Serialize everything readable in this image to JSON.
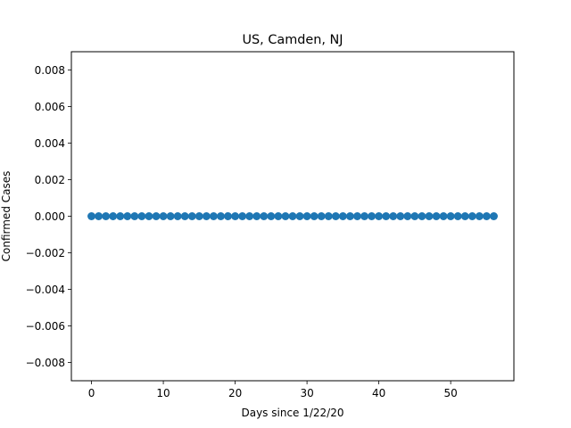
{
  "chart_data": {
    "type": "scatter",
    "title": "US, Camden, NJ",
    "xlabel": "Days since 1/22/20",
    "ylabel": "Confirmed Cases",
    "xlim": [
      -2.8,
      58.8
    ],
    "ylim": [
      -0.009,
      0.009
    ],
    "x_ticks": [
      0,
      10,
      20,
      30,
      40,
      50
    ],
    "x_tick_labels": [
      "0",
      "10",
      "20",
      "30",
      "40",
      "50"
    ],
    "y_ticks": [
      -0.008,
      -0.006,
      -0.004,
      -0.002,
      0.0,
      0.002,
      0.004,
      0.006,
      0.008
    ],
    "y_tick_labels": [
      "−0.008",
      "−0.006",
      "−0.004",
      "−0.002",
      "0.000",
      "0.002",
      "0.004",
      "0.006",
      "0.008"
    ],
    "grid": false,
    "series": [
      {
        "color": "#1f77b4",
        "x": [
          0,
          1,
          2,
          3,
          4,
          5,
          6,
          7,
          8,
          9,
          10,
          11,
          12,
          13,
          14,
          15,
          16,
          17,
          18,
          19,
          20,
          21,
          22,
          23,
          24,
          25,
          26,
          27,
          28,
          29,
          30,
          31,
          32,
          33,
          34,
          35,
          36,
          37,
          38,
          39,
          40,
          41,
          42,
          43,
          44,
          45,
          46,
          47,
          48,
          49,
          50,
          51,
          52,
          53,
          54,
          55,
          56
        ],
        "y": [
          0,
          0,
          0,
          0,
          0,
          0,
          0,
          0,
          0,
          0,
          0,
          0,
          0,
          0,
          0,
          0,
          0,
          0,
          0,
          0,
          0,
          0,
          0,
          0,
          0,
          0,
          0,
          0,
          0,
          0,
          0,
          0,
          0,
          0,
          0,
          0,
          0,
          0,
          0,
          0,
          0,
          0,
          0,
          0,
          0,
          0,
          0,
          0,
          0,
          0,
          0,
          0,
          0,
          0,
          0,
          0,
          0
        ]
      }
    ]
  }
}
